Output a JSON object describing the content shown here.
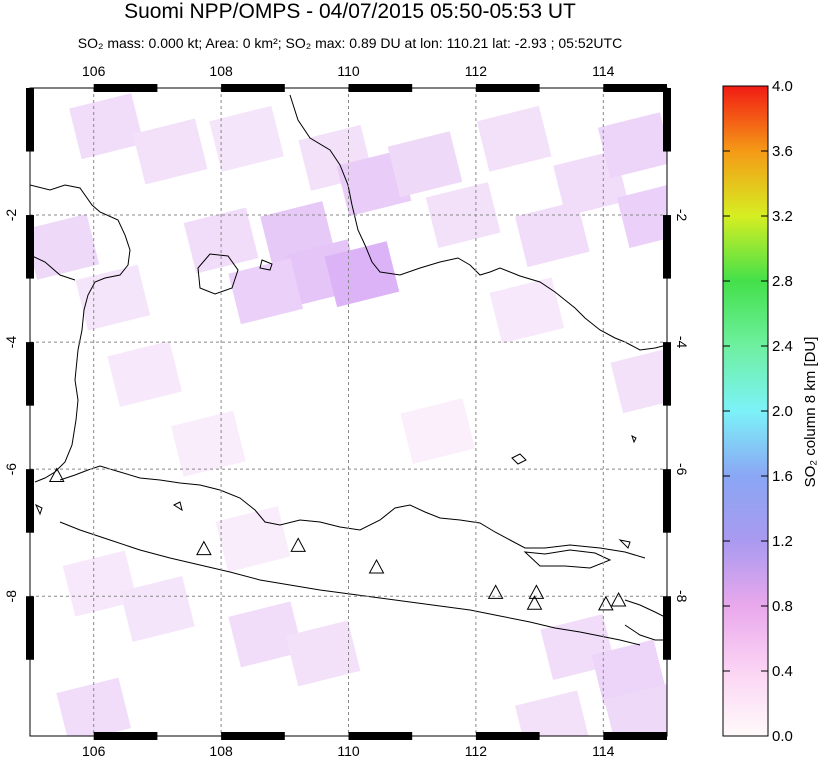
{
  "header": {
    "title": "Suomi NPP/OMPS - 04/07/2015 05:50-05:53 UT",
    "subtitle": "SO₂ mass: 0.000 kt; Area: 0 km²; SO₂ max: 0.89 DU at lon: 110.21 lat: -2.93 ; 05:52UTC"
  },
  "chart_data": {
    "type": "heatmap",
    "map": {
      "lon_range": [
        105,
        115
      ],
      "lat_range": [
        -10.2,
        0.0
      ],
      "x_ticks": [
        106,
        108,
        110,
        112,
        114
      ],
      "y_ticks": [
        -2,
        -4,
        -6,
        -8
      ],
      "x_tick_labels": [
        "106",
        "108",
        "110",
        "112",
        "114"
      ],
      "y_tick_labels": [
        "-2",
        "-4",
        "-6",
        "-8"
      ],
      "grid": true
    },
    "colorbar": {
      "label": "SO₂ column 8 km [DU]",
      "range": [
        0.0,
        4.0
      ],
      "ticks": [
        "0.0",
        "0.4",
        "0.8",
        "1.2",
        "1.6",
        "2.0",
        "2.4",
        "2.8",
        "3.2",
        "3.6",
        "4.0"
      ]
    },
    "pixels": [
      {
        "lon": 106.2,
        "lat": -0.6,
        "value": 0.35
      },
      {
        "lon": 107.2,
        "lat": -1.0,
        "value": 0.3
      },
      {
        "lon": 108.4,
        "lat": -0.8,
        "value": 0.25
      },
      {
        "lon": 109.8,
        "lat": -1.1,
        "value": 0.3
      },
      {
        "lon": 110.4,
        "lat": -1.5,
        "value": 0.55
      },
      {
        "lon": 111.2,
        "lat": -1.2,
        "value": 0.4
      },
      {
        "lon": 112.6,
        "lat": -0.8,
        "value": 0.3
      },
      {
        "lon": 113.8,
        "lat": -1.5,
        "value": 0.35
      },
      {
        "lon": 114.5,
        "lat": -0.9,
        "value": 0.45
      },
      {
        "lon": 114.8,
        "lat": -2.0,
        "value": 0.5
      },
      {
        "lon": 113.2,
        "lat": -2.3,
        "value": 0.35
      },
      {
        "lon": 111.8,
        "lat": -2.0,
        "value": 0.3
      },
      {
        "lon": 109.2,
        "lat": -2.3,
        "value": 0.6
      },
      {
        "lon": 109.6,
        "lat": -2.9,
        "value": 0.65
      },
      {
        "lon": 108.7,
        "lat": -3.2,
        "value": 0.5
      },
      {
        "lon": 110.21,
        "lat": -2.93,
        "value": 0.89
      },
      {
        "lon": 108.0,
        "lat": -2.4,
        "value": 0.35
      },
      {
        "lon": 105.5,
        "lat": -2.5,
        "value": 0.4
      },
      {
        "lon": 106.3,
        "lat": -3.3,
        "value": 0.25
      },
      {
        "lon": 106.8,
        "lat": -4.5,
        "value": 0.2
      },
      {
        "lon": 107.8,
        "lat": -5.6,
        "value": 0.15
      },
      {
        "lon": 111.4,
        "lat": -5.4,
        "value": 0.12
      },
      {
        "lon": 112.8,
        "lat": -3.5,
        "value": 0.2
      },
      {
        "lon": 114.7,
        "lat": -4.6,
        "value": 0.3
      },
      {
        "lon": 108.5,
        "lat": -7.1,
        "value": 0.15
      },
      {
        "lon": 106.1,
        "lat": -7.8,
        "value": 0.2
      },
      {
        "lon": 107.0,
        "lat": -8.2,
        "value": 0.25
      },
      {
        "lon": 108.7,
        "lat": -8.6,
        "value": 0.35
      },
      {
        "lon": 109.6,
        "lat": -8.9,
        "value": 0.3
      },
      {
        "lon": 113.6,
        "lat": -8.8,
        "value": 0.35
      },
      {
        "lon": 114.4,
        "lat": -9.2,
        "value": 0.45
      },
      {
        "lon": 106.0,
        "lat": -9.8,
        "value": 0.35
      },
      {
        "lon": 113.2,
        "lat": -10.0,
        "value": 0.3
      },
      {
        "lon": 114.6,
        "lat": -9.9,
        "value": 0.4
      }
    ],
    "volcanoes": [
      {
        "lon": 105.42,
        "lat": -6.1
      },
      {
        "lon": 107.73,
        "lat": -7.25
      },
      {
        "lon": 109.21,
        "lat": -7.2
      },
      {
        "lon": 110.44,
        "lat": -7.54
      },
      {
        "lon": 112.31,
        "lat": -7.94
      },
      {
        "lon": 112.95,
        "lat": -7.94
      },
      {
        "lon": 112.92,
        "lat": -8.11
      },
      {
        "lon": 114.04,
        "lat": -8.12
      },
      {
        "lon": 114.24,
        "lat": -8.06
      }
    ]
  }
}
